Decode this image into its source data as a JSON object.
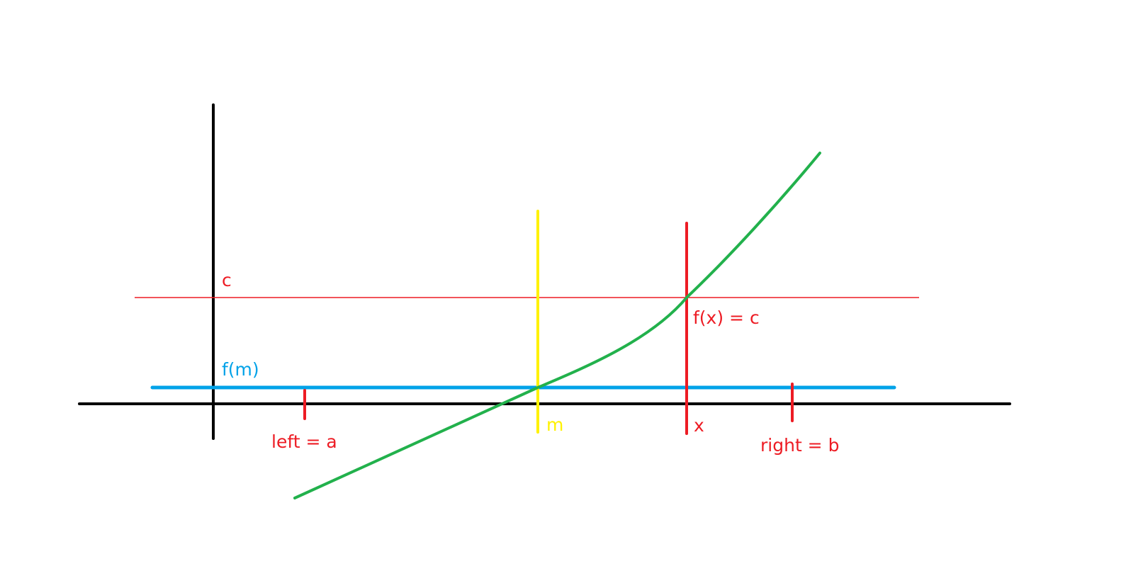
{
  "colors": {
    "background": "#ffffff",
    "axes": "#000000",
    "curve": "#22b14c",
    "target_level": "#ed1c24",
    "bounds": "#ed1c24",
    "solution": "#ed1c24",
    "midpoint": "#fff200",
    "midpoint_value": "#00a2e8"
  },
  "labels": {
    "c": "c",
    "f_m": "f(m)",
    "f_x_eq_c": "f(x) = c",
    "left": "left = a",
    "m": "m",
    "x": "x",
    "right": "right = b"
  }
}
